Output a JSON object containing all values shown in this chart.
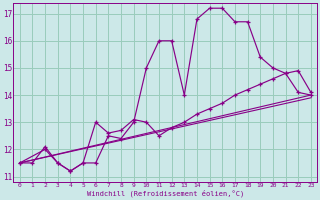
{
  "xlabel": "Windchill (Refroidissement éolien,°C)",
  "bg_color": "#cce8e8",
  "grid_color": "#99ccbb",
  "line_color": "#880088",
  "xlim": [
    -0.5,
    23.5
  ],
  "ylim": [
    10.8,
    17.4
  ],
  "xticks": [
    0,
    1,
    2,
    3,
    4,
    5,
    6,
    7,
    8,
    9,
    10,
    11,
    12,
    13,
    14,
    15,
    16,
    17,
    18,
    19,
    20,
    21,
    22,
    23
  ],
  "yticks": [
    11,
    12,
    13,
    14,
    15,
    16,
    17
  ],
  "curve1_x": [
    0,
    2,
    3,
    4,
    5,
    6,
    7,
    8,
    9,
    10,
    11,
    12,
    13,
    14,
    15,
    16,
    17,
    18,
    19,
    20,
    21,
    22,
    23
  ],
  "curve1_y": [
    11.5,
    12.0,
    11.5,
    11.2,
    11.5,
    13.0,
    12.6,
    12.7,
    13.1,
    13.0,
    12.5,
    12.8,
    13.0,
    13.3,
    13.5,
    13.7,
    14.0,
    14.2,
    14.4,
    14.6,
    14.8,
    14.9,
    14.1
  ],
  "curve2_x": [
    0,
    1,
    2,
    3,
    4,
    5,
    6,
    7,
    8,
    9,
    10,
    11,
    12,
    13,
    14,
    15,
    16,
    17,
    18,
    19,
    20,
    21,
    22,
    23
  ],
  "curve2_y": [
    11.5,
    11.5,
    12.1,
    11.5,
    11.2,
    11.5,
    11.5,
    12.5,
    12.4,
    13.0,
    15.0,
    16.0,
    16.0,
    14.0,
    16.8,
    17.2,
    17.2,
    16.7,
    16.7,
    15.4,
    15.0,
    14.8,
    14.1,
    14.0
  ],
  "line3_x": [
    0,
    23
  ],
  "line3_y": [
    11.5,
    13.9
  ],
  "line4_x": [
    0,
    23
  ],
  "line4_y": [
    11.5,
    14.0
  ]
}
